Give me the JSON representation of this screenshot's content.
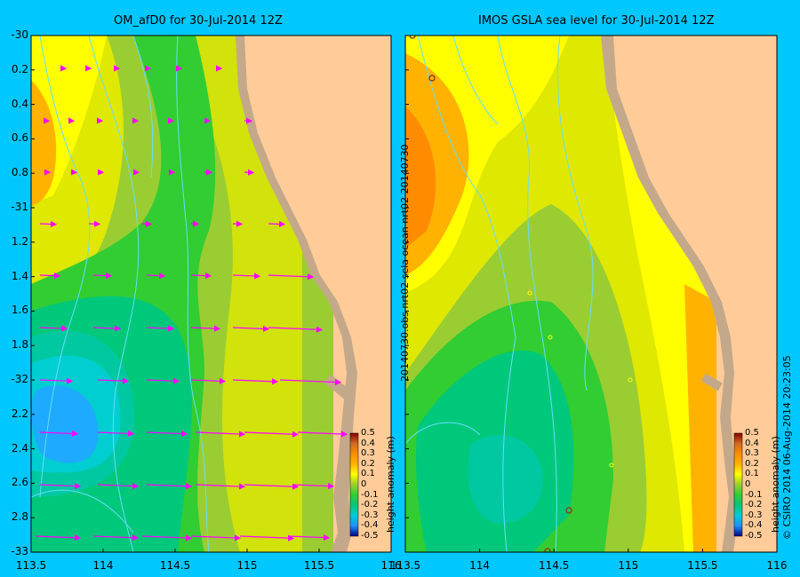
{
  "left_panel": {
    "title": "OM_afD0 for 30-Jul-2014 12Z",
    "y_ticks": [
      "-30",
      "0.2",
      "0.4",
      "0.6",
      "0.8",
      "-31",
      "1.2",
      "1.4",
      "1.6",
      "1.8",
      "-32",
      "2.2",
      "2.4",
      "2.6",
      "2.8",
      "-33"
    ],
    "x_ticks": [
      "113.5",
      "114",
      "114.5",
      "115",
      "115.5",
      "116"
    ],
    "colorbar_label": "height anomaly (m)",
    "colorbar_ticks": [
      "0.5",
      "0.4",
      "0.3",
      "0.2",
      "0.1",
      "0",
      "-0.1",
      "-0.2",
      "-0.3",
      "-0.4",
      "-0.5"
    ]
  },
  "right_panel": {
    "title": "IMOS GSLA sea level  for 30-Jul-2014 12Z",
    "side_text": "20140730.obs  nrt02  sela   ocean  nrt02  20140730",
    "x_ticks": [
      "113.5",
      "114",
      "114.5",
      "115",
      "115.5",
      "116"
    ],
    "colorbar_label": "height anomaly (m)",
    "colorbar_ticks": [
      "0.5",
      "0.4",
      "0.3",
      "0.2",
      "0.1",
      "0",
      "-0.1",
      "-0.2",
      "-0.3",
      "-0.4",
      "-0.5"
    ]
  },
  "footer_text": "© CSIRO 2014   06-Aug-2014 20:23:05",
  "colors": {
    "background": "#00c8ff",
    "land": "#ffcc99",
    "shelf": "#c4a88a",
    "vector": "#ff00ff",
    "current_line": "#66ddff"
  }
}
